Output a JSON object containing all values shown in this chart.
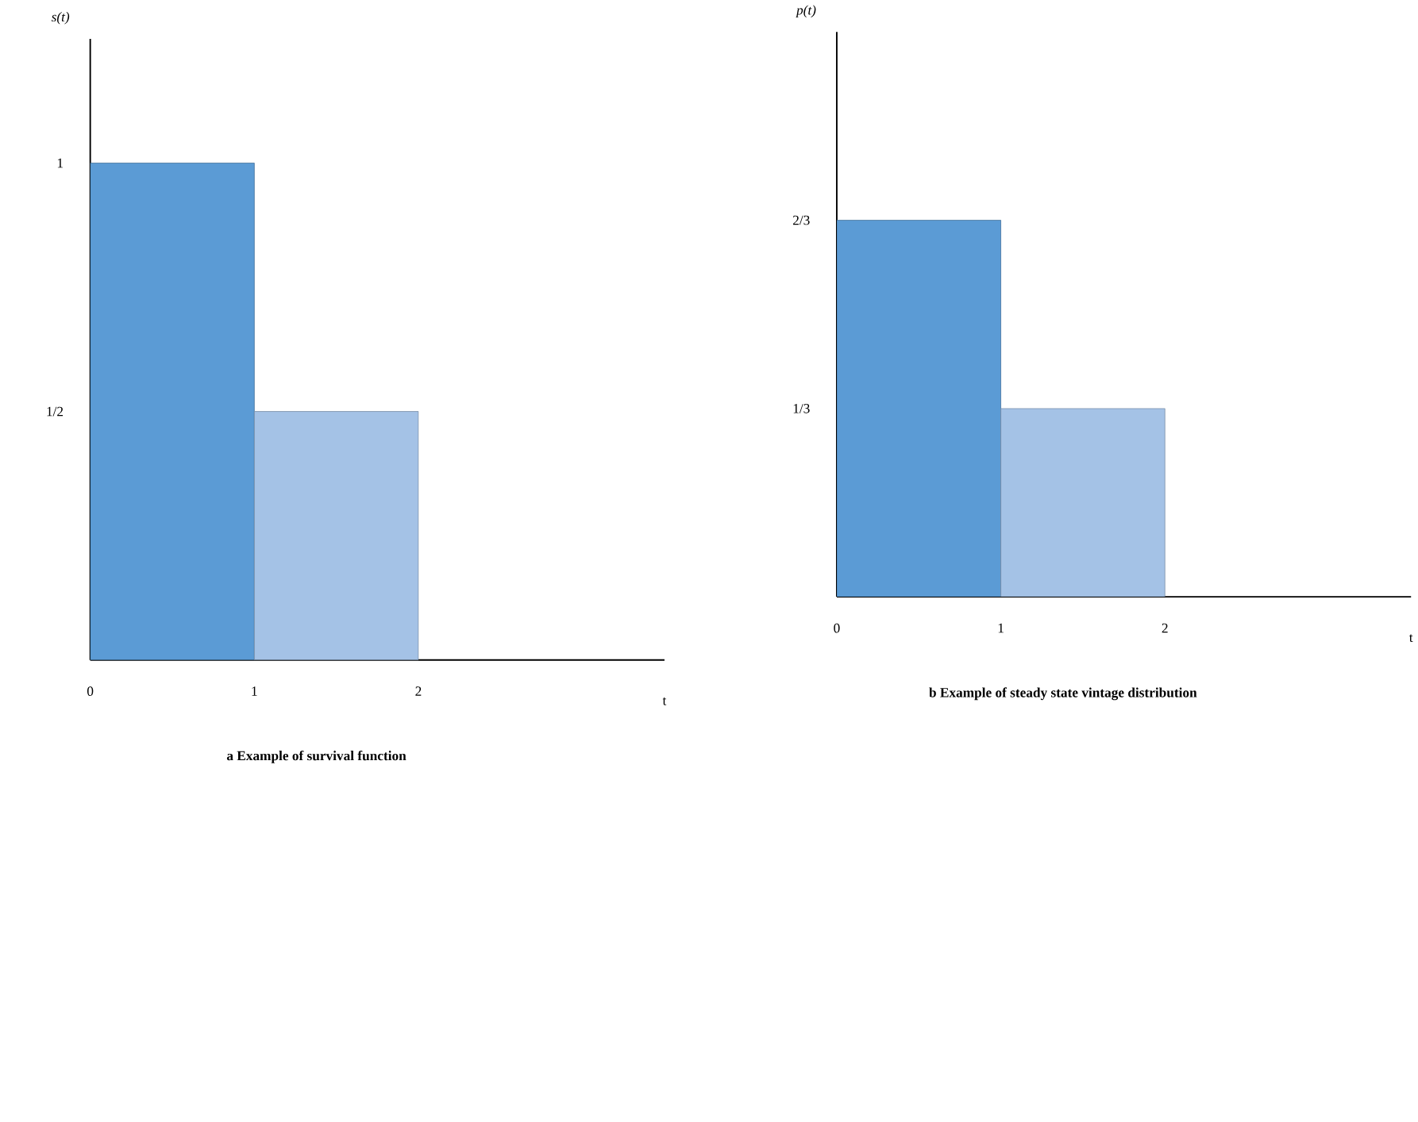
{
  "chart_data": [
    {
      "type": "histogram",
      "title": "a Example of survival function",
      "xlabel": "t",
      "ylabel": "s(t)",
      "bins": [
        0,
        1,
        2
      ],
      "values": [
        1,
        0.5
      ],
      "colors": [
        "#5b9bd5",
        "#a4c2e6"
      ],
      "xlim": [
        0,
        3.5
      ],
      "ylim": [
        0,
        1.25
      ],
      "xticks": [
        0,
        1,
        2
      ],
      "yticks": [
        1,
        {
          "value": 0.5,
          "label": "1/2"
        }
      ],
      "grid": false
    },
    {
      "type": "histogram",
      "title": "b Example of steady state vintage distribution",
      "xlabel": "t",
      "ylabel": "p(t)",
      "bins": [
        0,
        1,
        2
      ],
      "values": [
        0.6667,
        0.3333
      ],
      "colors": [
        "#5b9bd5",
        "#a4c2e6"
      ],
      "xlim": [
        0,
        3.5
      ],
      "ylim": [
        0,
        1
      ],
      "xticks": [
        0,
        1,
        2
      ],
      "yticks": [
        {
          "value": 0.6667,
          "label": "2/3"
        },
        {
          "value": 0.3333,
          "label": "1/3"
        }
      ],
      "grid": false
    }
  ]
}
